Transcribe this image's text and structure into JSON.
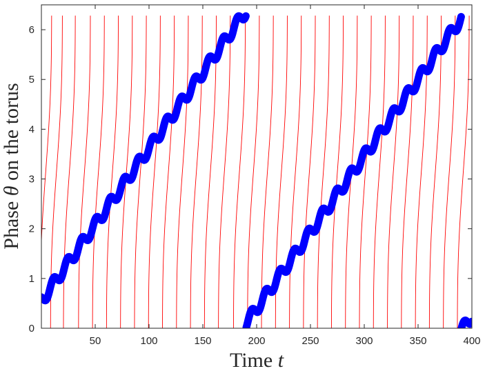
{
  "chart_data": {
    "type": "line",
    "xlabel": "Time t",
    "ylabel": "Phase θ on the torus",
    "xlim": [
      0,
      400
    ],
    "ylim": [
      0,
      6.5
    ],
    "xticks": [
      50,
      100,
      150,
      200,
      250,
      300,
      350,
      400
    ],
    "yticks": [
      0,
      1,
      2,
      3,
      4,
      5,
      6
    ],
    "grid": false,
    "legend": "none",
    "colors": {
      "slow_phase": "#0000ff",
      "fast_phase": "#ff0000",
      "axes": "#262626"
    },
    "series": [
      {
        "color": "#0000ff",
        "style": "thick",
        "description_points": [
          [
            0,
            0.55
          ],
          [
            187,
            6.283
          ],
          [
            187,
            0.0
          ],
          [
            400,
            6.283
          ]
        ],
        "wrap": 6.2832
      },
      {
        "color": "#ff0000",
        "style": "thin",
        "crossing_times": [
          4,
          14,
          26,
          40,
          53,
          66,
          79,
          92,
          105,
          118,
          131,
          144,
          157,
          170,
          184,
          197,
          210,
          223,
          236,
          249,
          262,
          275,
          288,
          301,
          314,
          327,
          340,
          353,
          366,
          379,
          392
        ],
        "wrap": 6.2832
      }
    ]
  }
}
